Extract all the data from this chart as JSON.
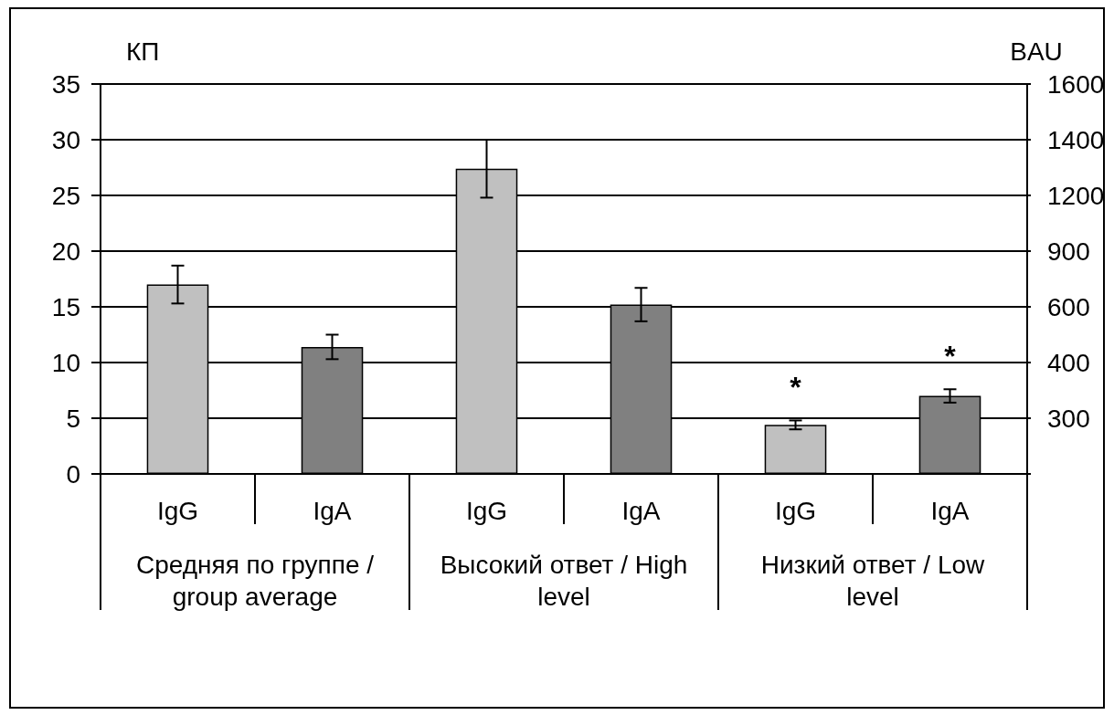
{
  "chart_data": {
    "type": "bar",
    "ylabel": "КП",
    "y2label": "BAU",
    "categories": [
      "Средняя по группе / group average",
      "Высокий ответ / High level",
      "Низкий ответ / Low level"
    ],
    "series": [
      {
        "name": "IgG",
        "color": "#c0c0c0",
        "values": [
          17.0,
          27.4,
          4.4
        ],
        "errors": [
          1.7,
          2.6,
          0.4
        ],
        "value_labels": [
          null,
          null,
          "*"
        ]
      },
      {
        "name": "IgA",
        "color": "#808080",
        "values": [
          11.4,
          15.2,
          7.0
        ],
        "errors": [
          1.1,
          1.5,
          0.6
        ],
        "value_labels": [
          null,
          null,
          "*"
        ]
      }
    ],
    "ylim": [
      0,
      35
    ],
    "yticks": [
      0,
      5,
      10,
      15,
      20,
      25,
      30,
      35
    ],
    "y2_categories": [
      "1600",
      "1400",
      "1200",
      "900",
      "600",
      "400",
      "300",
      null
    ],
    "grid": "y"
  }
}
